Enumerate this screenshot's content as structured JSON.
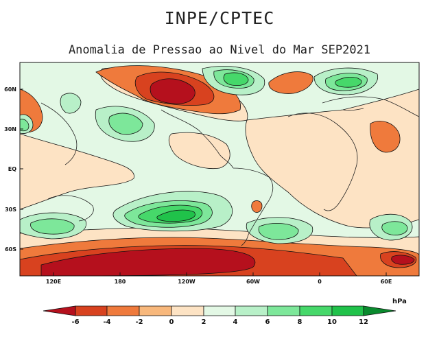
{
  "header": {
    "organization": "INPE/CPTEC",
    "title": "Anomalia de Pressao ao Nivel do Mar SEP2021"
  },
  "map": {
    "lat_labels": [
      "60N",
      "30N",
      "EQ",
      "30S",
      "60S"
    ],
    "lon_labels": [
      "120E",
      "180",
      "120W",
      "60W",
      "0",
      "60E"
    ]
  },
  "colorbar": {
    "unit": "hPa",
    "tick_labels": [
      "-6",
      "-4",
      "-2",
      "0",
      "2",
      "4",
      "6",
      "8",
      "10",
      "12"
    ],
    "colors": [
      "#b5101d",
      "#d8421f",
      "#ef7a3c",
      "#f8b87c",
      "#fde3c4",
      "#e3f8e5",
      "#b8f0c8",
      "#7de79a",
      "#46d86a",
      "#20c24a",
      "#0ea83c",
      "#0a8a2e"
    ]
  }
}
